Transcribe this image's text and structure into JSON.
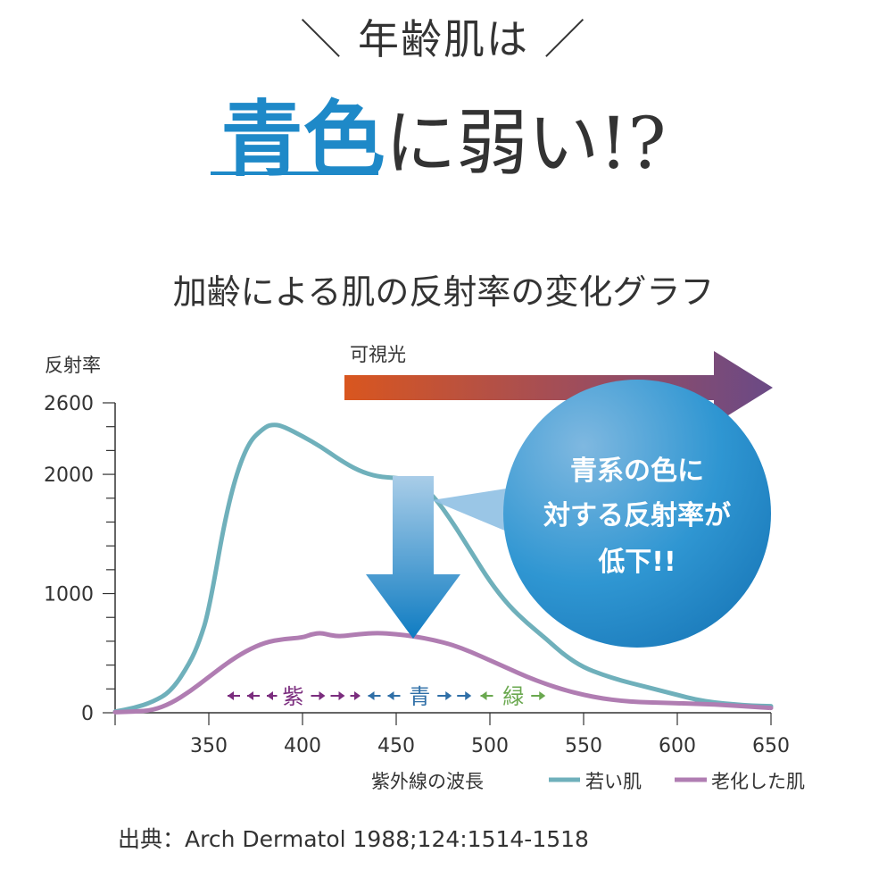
{
  "headline": {
    "line1": "＼ 年齢肌は ／",
    "highlight": "青色",
    "rest": "に弱い!?"
  },
  "chart_title": "加齢による肌の反射率の変化グラフ",
  "source": "出典：Arch Dermatol 1988;124:1514-1518",
  "colors": {
    "accent": "#1e89c8",
    "young": "#6fb0bb",
    "aged": "#b07db2",
    "violet": "#7b2d7e",
    "blue": "#2f6fa7",
    "green": "#6aa84f"
  },
  "annotations": {
    "visible_light": "可視光",
    "callout": [
      "青系の色に",
      "対する反射率が",
      "低下!!"
    ],
    "bands": [
      {
        "label": "紫",
        "from": 360,
        "to": 430,
        "color": "#7b2d7e"
      },
      {
        "label": "青",
        "from": 435,
        "to": 490,
        "color": "#2f6fa7"
      },
      {
        "label": "緑",
        "from": 495,
        "to": 530,
        "color": "#6aa84f"
      }
    ]
  },
  "chart_data": {
    "type": "line",
    "ylabel": "反射率",
    "xlabel": "紫外線の波長",
    "xlim": [
      300,
      650
    ],
    "ylim": [
      0,
      2600
    ],
    "xticks": [
      350,
      400,
      450,
      500,
      550,
      600,
      650
    ],
    "yticks": [
      0,
      1000,
      2000,
      2600
    ],
    "legend_position": "bottom-right",
    "series": [
      {
        "name": "若い肌",
        "x": [
          300,
          310,
          320,
          330,
          340,
          345,
          350,
          360,
          370,
          380,
          385,
          390,
          400,
          410,
          420,
          430,
          440,
          450,
          460,
          470,
          480,
          490,
          500,
          510,
          520,
          530,
          540,
          550,
          560,
          570,
          580,
          590,
          600,
          610,
          620,
          630,
          640,
          650
        ],
        "y": [
          10,
          40,
          90,
          180,
          420,
          600,
          850,
          1750,
          2250,
          2400,
          2420,
          2400,
          2320,
          2230,
          2120,
          2030,
          1980,
          1970,
          1950,
          1820,
          1600,
          1350,
          1100,
          900,
          750,
          620,
          480,
          380,
          320,
          270,
          230,
          190,
          150,
          110,
          85,
          70,
          60,
          55
        ]
      },
      {
        "name": "老化した肌",
        "x": [
          300,
          310,
          320,
          330,
          340,
          350,
          360,
          370,
          380,
          390,
          400,
          405,
          410,
          415,
          420,
          430,
          440,
          450,
          460,
          470,
          480,
          490,
          500,
          510,
          520,
          530,
          540,
          550,
          560,
          570,
          580,
          590,
          600,
          610,
          620,
          630,
          640,
          650
        ],
        "y": [
          5,
          10,
          20,
          80,
          180,
          300,
          420,
          520,
          590,
          620,
          630,
          660,
          670,
          650,
          640,
          660,
          670,
          660,
          640,
          610,
          570,
          510,
          440,
          370,
          300,
          240,
          190,
          150,
          120,
          100,
          90,
          85,
          80,
          75,
          70,
          60,
          50,
          40
        ]
      }
    ]
  }
}
